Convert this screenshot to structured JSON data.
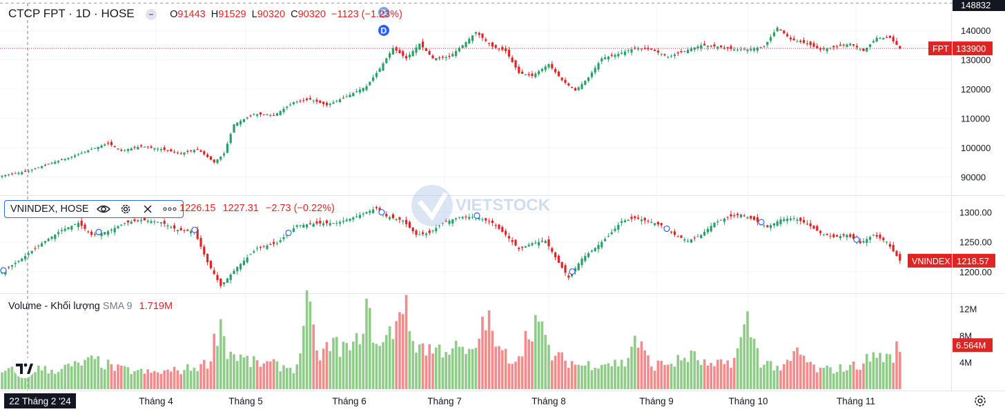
{
  "header": {
    "symbol": "CTCP FPT · 1D · HOSE",
    "ohlc": [
      {
        "k": "O",
        "v": "91443"
      },
      {
        "k": "H",
        "v": "91529"
      },
      {
        "k": "L",
        "v": "90320"
      },
      {
        "k": "C",
        "v": "90320"
      }
    ],
    "change": "−1123 (−1.23%)"
  },
  "indicator": {
    "name": "VNINDEX, HOSE",
    "values": [
      "1226.15",
      "1227.31",
      "−2.73 (−0.22%)"
    ]
  },
  "volume_title": {
    "name": "Volume - Khối lượng",
    "sma_label": "SMA 9",
    "sma_value": "1.719M"
  },
  "date_badge": "22 Tháng 2 '24",
  "watermark": "VIETSTOCK",
  "colors": {
    "up": "#26a269",
    "down": "#e02424",
    "vol_up": "#8fcc88",
    "vol_down": "#f08c8c",
    "crosshair": "#787b86"
  },
  "icons": [
    "eye-icon",
    "gear-icon",
    "close-icon",
    "more-icon",
    "settings-icon",
    "tradingview-logo-icon",
    "dividend-marker-icon"
  ],
  "chart_data": [
    {
      "type": "candlestick",
      "title": "CTCP FPT · 1D · HOSE",
      "price_ticks": [
        "140000",
        "130000",
        "120000",
        "110000",
        "100000",
        "90000"
      ],
      "ylim": [
        84000,
        149000
      ],
      "top_label": "148832",
      "last_price": {
        "label": "FPT",
        "value": "133900"
      },
      "x_months": [
        "Tháng 4",
        "Tháng 5",
        "Tháng 6",
        "Tháng 7",
        "Tháng 8",
        "Tháng 9",
        "Tháng 10",
        "Tháng 11"
      ],
      "dividend_markers": [
        "D",
        "D"
      ],
      "close_path": [
        {
          "i": 0,
          "v": 90500
        },
        {
          "i": 8,
          "v": 92000
        },
        {
          "i": 14,
          "v": 94500
        },
        {
          "i": 20,
          "v": 96500
        },
        {
          "i": 27,
          "v": 99500
        },
        {
          "i": 32,
          "v": 101500
        },
        {
          "i": 36,
          "v": 99000
        },
        {
          "i": 42,
          "v": 100500
        },
        {
          "i": 48,
          "v": 99500
        },
        {
          "i": 54,
          "v": 98000
        },
        {
          "i": 59,
          "v": 99500
        },
        {
          "i": 64,
          "v": 95000
        },
        {
          "i": 67,
          "v": 98000
        },
        {
          "i": 70,
          "v": 108000
        },
        {
          "i": 76,
          "v": 111500
        },
        {
          "i": 82,
          "v": 111000
        },
        {
          "i": 88,
          "v": 115500
        },
        {
          "i": 93,
          "v": 116500
        },
        {
          "i": 98,
          "v": 114500
        },
        {
          "i": 104,
          "v": 117500
        },
        {
          "i": 110,
          "v": 121000
        },
        {
          "i": 114,
          "v": 127000
        },
        {
          "i": 118,
          "v": 134000
        },
        {
          "i": 122,
          "v": 130500
        },
        {
          "i": 126,
          "v": 135500
        },
        {
          "i": 130,
          "v": 130500
        },
        {
          "i": 135,
          "v": 131000
        },
        {
          "i": 140,
          "v": 136000
        },
        {
          "i": 143,
          "v": 139500
        },
        {
          "i": 148,
          "v": 134500
        },
        {
          "i": 152,
          "v": 133000
        },
        {
          "i": 156,
          "v": 125500
        },
        {
          "i": 160,
          "v": 124500
        },
        {
          "i": 165,
          "v": 128500
        },
        {
          "i": 169,
          "v": 123000
        },
        {
          "i": 173,
          "v": 119500
        },
        {
          "i": 177,
          "v": 124000
        },
        {
          "i": 181,
          "v": 130500
        },
        {
          "i": 186,
          "v": 132000
        },
        {
          "i": 191,
          "v": 134000
        },
        {
          "i": 196,
          "v": 133500
        },
        {
          "i": 201,
          "v": 131000
        },
        {
          "i": 206,
          "v": 133000
        },
        {
          "i": 211,
          "v": 135000
        },
        {
          "i": 216,
          "v": 134500
        },
        {
          "i": 221,
          "v": 133500
        },
        {
          "i": 225,
          "v": 133500
        },
        {
          "i": 230,
          "v": 134500
        },
        {
          "i": 234,
          "v": 141000
        },
        {
          "i": 238,
          "v": 137000
        },
        {
          "i": 243,
          "v": 135500
        },
        {
          "i": 247,
          "v": 133500
        },
        {
          "i": 252,
          "v": 134500
        },
        {
          "i": 256,
          "v": 135500
        },
        {
          "i": 260,
          "v": 133000
        },
        {
          "i": 264,
          "v": 137500
        },
        {
          "i": 268,
          "v": 137500
        },
        {
          "i": 271,
          "v": 133900
        }
      ]
    },
    {
      "type": "candlestick",
      "title": "VNINDEX, HOSE",
      "price_ticks": [
        "1300.00",
        "1250.00",
        "1200.00"
      ],
      "ylim": [
        1165,
        1325
      ],
      "last_price": {
        "label": "VNINDEX",
        "value": "1218.57"
      },
      "close_path": [
        {
          "i": 0,
          "v": 1200
        },
        {
          "i": 6,
          "v": 1222
        },
        {
          "i": 12,
          "v": 1248
        },
        {
          "i": 18,
          "v": 1270
        },
        {
          "i": 23,
          "v": 1282
        },
        {
          "i": 27,
          "v": 1262
        },
        {
          "i": 32,
          "v": 1268
        },
        {
          "i": 37,
          "v": 1282
        },
        {
          "i": 42,
          "v": 1287
        },
        {
          "i": 48,
          "v": 1283
        },
        {
          "i": 53,
          "v": 1270
        },
        {
          "i": 58,
          "v": 1268
        },
        {
          "i": 62,
          "v": 1216
        },
        {
          "i": 66,
          "v": 1176
        },
        {
          "i": 71,
          "v": 1208
        },
        {
          "i": 77,
          "v": 1240
        },
        {
          "i": 83,
          "v": 1248
        },
        {
          "i": 89,
          "v": 1278
        },
        {
          "i": 95,
          "v": 1281
        },
        {
          "i": 101,
          "v": 1282
        },
        {
          "i": 107,
          "v": 1293
        },
        {
          "i": 113,
          "v": 1307
        },
        {
          "i": 116,
          "v": 1293
        },
        {
          "i": 121,
          "v": 1286
        },
        {
          "i": 125,
          "v": 1262
        },
        {
          "i": 129,
          "v": 1265
        },
        {
          "i": 133,
          "v": 1282
        },
        {
          "i": 138,
          "v": 1292
        },
        {
          "i": 143,
          "v": 1292
        },
        {
          "i": 148,
          "v": 1282
        },
        {
          "i": 152,
          "v": 1262
        },
        {
          "i": 156,
          "v": 1238
        },
        {
          "i": 160,
          "v": 1248
        },
        {
          "i": 164,
          "v": 1252
        },
        {
          "i": 168,
          "v": 1215
        },
        {
          "i": 171,
          "v": 1190
        },
        {
          "i": 175,
          "v": 1222
        },
        {
          "i": 179,
          "v": 1240
        },
        {
          "i": 183,
          "v": 1260
        },
        {
          "i": 187,
          "v": 1285
        },
        {
          "i": 191,
          "v": 1290
        },
        {
          "i": 195,
          "v": 1285
        },
        {
          "i": 199,
          "v": 1278
        },
        {
          "i": 203,
          "v": 1262
        },
        {
          "i": 207,
          "v": 1252
        },
        {
          "i": 211,
          "v": 1262
        },
        {
          "i": 215,
          "v": 1282
        },
        {
          "i": 219,
          "v": 1292
        },
        {
          "i": 223,
          "v": 1296
        },
        {
          "i": 227,
          "v": 1287
        },
        {
          "i": 231,
          "v": 1275
        },
        {
          "i": 235,
          "v": 1288
        },
        {
          "i": 239,
          "v": 1290
        },
        {
          "i": 243,
          "v": 1280
        },
        {
          "i": 247,
          "v": 1265
        },
        {
          "i": 251,
          "v": 1258
        },
        {
          "i": 255,
          "v": 1262
        },
        {
          "i": 259,
          "v": 1248
        },
        {
          "i": 263,
          "v": 1262
        },
        {
          "i": 267,
          "v": 1250
        },
        {
          "i": 271,
          "v": 1218.57
        }
      ]
    },
    {
      "type": "bar",
      "title": "Volume - Khối lượng",
      "y_ticks": [
        "12M",
        "8M",
        "4M"
      ],
      "ylim": [
        0,
        14000000
      ],
      "last_value_label": "6.564M",
      "sma": {
        "name": "SMA 9",
        "value": "1.719M"
      },
      "volume_path": [
        {
          "i": 0,
          "v": 2.5
        },
        {
          "i": 8,
          "v": 3.2
        },
        {
          "i": 15,
          "v": 2.8
        },
        {
          "i": 22,
          "v": 3.5
        },
        {
          "i": 28,
          "v": 4.3
        },
        {
          "i": 35,
          "v": 3.0
        },
        {
          "i": 45,
          "v": 2.4
        },
        {
          "i": 55,
          "v": 2.9
        },
        {
          "i": 62,
          "v": 3.8
        },
        {
          "i": 66,
          "v": 10.2
        },
        {
          "i": 68,
          "v": 5.6
        },
        {
          "i": 75,
          "v": 4.0
        },
        {
          "i": 82,
          "v": 3.6
        },
        {
          "i": 89,
          "v": 3.1
        },
        {
          "i": 92,
          "v": 13.3
        },
        {
          "i": 95,
          "v": 5.0
        },
        {
          "i": 100,
          "v": 6.6
        },
        {
          "i": 106,
          "v": 5.8
        },
        {
          "i": 110,
          "v": 11.5
        },
        {
          "i": 114,
          "v": 6.0
        },
        {
          "i": 118,
          "v": 9.0
        },
        {
          "i": 121,
          "v": 13.6
        },
        {
          "i": 124,
          "v": 7.0
        },
        {
          "i": 130,
          "v": 5.8
        },
        {
          "i": 136,
          "v": 6.2
        },
        {
          "i": 142,
          "v": 5.0
        },
        {
          "i": 146,
          "v": 11.0
        },
        {
          "i": 150,
          "v": 5.5
        },
        {
          "i": 155,
          "v": 4.5
        },
        {
          "i": 161,
          "v": 10.5
        },
        {
          "i": 166,
          "v": 5.0
        },
        {
          "i": 170,
          "v": 4.3
        },
        {
          "i": 175,
          "v": 3.5
        },
        {
          "i": 181,
          "v": 4.0
        },
        {
          "i": 188,
          "v": 3.8
        },
        {
          "i": 191,
          "v": 7.8
        },
        {
          "i": 196,
          "v": 3.5
        },
        {
          "i": 203,
          "v": 4.0
        },
        {
          "i": 208,
          "v": 5.0
        },
        {
          "i": 214,
          "v": 3.2
        },
        {
          "i": 221,
          "v": 4.4
        },
        {
          "i": 225,
          "v": 10.1
        },
        {
          "i": 229,
          "v": 4.2
        },
        {
          "i": 236,
          "v": 3.0
        },
        {
          "i": 240,
          "v": 5.5
        },
        {
          "i": 246,
          "v": 2.8
        },
        {
          "i": 252,
          "v": 3.0
        },
        {
          "i": 258,
          "v": 3.5
        },
        {
          "i": 264,
          "v": 5.2
        },
        {
          "i": 268,
          "v": 4.5
        },
        {
          "i": 271,
          "v": 6.564
        }
      ]
    }
  ]
}
